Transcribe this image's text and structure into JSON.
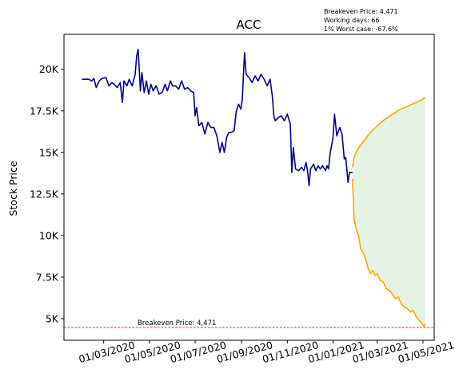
{
  "chart_data": {
    "type": "line",
    "title": "ACC",
    "xlabel": "",
    "ylabel": "Stock Price",
    "info_lines": [
      "Breakeven Price: 4,471",
      "Working days: 66",
      "1% Worst case: -67.6%"
    ],
    "x_ticks": [
      "01/03/2020",
      "01/05/2020",
      "01/07/2020",
      "01/09/2020",
      "01/11/2020",
      "01/01/2021",
      "01/03/2021",
      "01/05/2021"
    ],
    "y_ticks": [
      "5K",
      "7.5K",
      "10K",
      "12.5K",
      "15K",
      "17.5K",
      "20K"
    ],
    "y_tick_values": [
      5000,
      7500,
      10000,
      12500,
      15000,
      17500,
      20000
    ],
    "ylim": [
      3700,
      22100
    ],
    "xlim": [
      "2020-01-08",
      "2021-05-16"
    ],
    "grid": false,
    "breakeven": {
      "value": 4471,
      "label": "Breakeven Price: 4,471",
      "color": "#ff0000"
    },
    "series": [
      {
        "color": "#00008b",
        "points": [
          [
            "2020-02-01",
            19400
          ],
          [
            "2020-02-10",
            19400
          ],
          [
            "2020-02-14",
            19300
          ],
          [
            "2020-02-17",
            19450
          ],
          [
            "2020-02-20",
            18900
          ],
          [
            "2020-02-24",
            19300
          ],
          [
            "2020-02-28",
            19450
          ],
          [
            "2020-03-04",
            19500
          ],
          [
            "2020-03-08",
            19000
          ],
          [
            "2020-03-12",
            19200
          ],
          [
            "2020-03-15",
            19100
          ],
          [
            "2020-03-19",
            18900
          ],
          [
            "2020-03-23",
            19200
          ],
          [
            "2020-03-26",
            18000
          ],
          [
            "2020-03-28",
            19300
          ],
          [
            "2020-04-01",
            19000
          ],
          [
            "2020-04-04",
            19400
          ],
          [
            "2020-04-08",
            19000
          ],
          [
            "2020-04-12",
            19700
          ],
          [
            "2020-04-14",
            20800
          ],
          [
            "2020-04-16",
            21200
          ],
          [
            "2020-04-19",
            18700
          ],
          [
            "2020-04-21",
            19800
          ],
          [
            "2020-04-24",
            18600
          ],
          [
            "2020-04-27",
            19300
          ],
          [
            "2020-04-30",
            18500
          ],
          [
            "2020-05-03",
            19100
          ],
          [
            "2020-05-06",
            18700
          ],
          [
            "2020-05-10",
            19000
          ],
          [
            "2020-05-14",
            18500
          ],
          [
            "2020-05-18",
            18600
          ],
          [
            "2020-05-22",
            19100
          ],
          [
            "2020-05-25",
            18700
          ],
          [
            "2020-05-29",
            19300
          ],
          [
            "2020-06-01",
            19000
          ],
          [
            "2020-06-05",
            19000
          ],
          [
            "2020-06-09",
            18800
          ],
          [
            "2020-06-13",
            19300
          ],
          [
            "2020-06-17",
            18800
          ],
          [
            "2020-06-21",
            18900
          ],
          [
            "2020-06-25",
            18700
          ],
          [
            "2020-06-29",
            18600
          ],
          [
            "2020-07-01",
            17200
          ],
          [
            "2020-07-03",
            17700
          ],
          [
            "2020-07-06",
            16600
          ],
          [
            "2020-07-10",
            16800
          ],
          [
            "2020-07-14",
            16100
          ],
          [
            "2020-07-18",
            16800
          ],
          [
            "2020-07-22",
            16500
          ],
          [
            "2020-07-26",
            16500
          ],
          [
            "2020-07-30",
            16000
          ],
          [
            "2020-08-03",
            15000
          ],
          [
            "2020-08-06",
            15600
          ],
          [
            "2020-08-09",
            15000
          ],
          [
            "2020-08-12",
            15900
          ],
          [
            "2020-08-15",
            16200
          ],
          [
            "2020-08-18",
            16200
          ],
          [
            "2020-08-22",
            16300
          ],
          [
            "2020-08-25",
            17500
          ],
          [
            "2020-08-28",
            17900
          ],
          [
            "2020-08-31",
            17600
          ],
          [
            "2020-09-02",
            18200
          ],
          [
            "2020-09-04",
            20200
          ],
          [
            "2020-09-05",
            21000
          ],
          [
            "2020-09-07",
            19700
          ],
          [
            "2020-09-11",
            19500
          ],
          [
            "2020-09-15",
            19200
          ],
          [
            "2020-09-19",
            19600
          ],
          [
            "2020-09-23",
            19300
          ],
          [
            "2020-09-27",
            19700
          ],
          [
            "2020-10-01",
            19400
          ],
          [
            "2020-10-05",
            19000
          ],
          [
            "2020-10-09",
            19400
          ],
          [
            "2020-10-12",
            18400
          ],
          [
            "2020-10-14",
            17200
          ],
          [
            "2020-10-16",
            16900
          ],
          [
            "2020-10-20",
            17100
          ],
          [
            "2020-10-24",
            17200
          ],
          [
            "2020-10-28",
            16900
          ],
          [
            "2020-11-01",
            17300
          ],
          [
            "2020-11-05",
            16700
          ],
          [
            "2020-11-07",
            13800
          ],
          [
            "2020-11-09",
            15300
          ],
          [
            "2020-11-12",
            14000
          ],
          [
            "2020-11-16",
            13900
          ],
          [
            "2020-11-20",
            14100
          ],
          [
            "2020-11-23",
            13900
          ],
          [
            "2020-11-26",
            14400
          ],
          [
            "2020-11-28",
            13900
          ],
          [
            "2020-11-30",
            13000
          ],
          [
            "2020-12-02",
            14000
          ],
          [
            "2020-12-06",
            14300
          ],
          [
            "2020-12-09",
            13900
          ],
          [
            "2020-12-12",
            14200
          ],
          [
            "2020-12-15",
            14000
          ],
          [
            "2020-12-18",
            14200
          ],
          [
            "2020-12-22",
            13900
          ],
          [
            "2020-12-24",
            14200
          ],
          [
            "2020-12-26",
            14000
          ],
          [
            "2020-12-28",
            14900
          ],
          [
            "2021-01-01",
            15900
          ],
          [
            "2021-01-03",
            17300
          ],
          [
            "2021-01-06",
            16000
          ],
          [
            "2021-01-10",
            16500
          ],
          [
            "2021-01-13",
            16100
          ],
          [
            "2021-01-16",
            14600
          ],
          [
            "2021-01-18",
            14700
          ],
          [
            "2021-01-21",
            13200
          ],
          [
            "2021-01-23",
            13800
          ],
          [
            "2021-01-27",
            13800
          ]
        ]
      },
      {
        "color": "#ffa500",
        "points": [
          [
            "2021-01-27",
            14100
          ],
          [
            "2021-01-29",
            14700
          ],
          [
            "2021-02-03",
            15200
          ],
          [
            "2021-02-08",
            15500
          ],
          [
            "2021-02-13",
            15800
          ],
          [
            "2021-02-18",
            16100
          ],
          [
            "2021-02-23",
            16350
          ],
          [
            "2021-02-28",
            16550
          ],
          [
            "2021-03-05",
            16750
          ],
          [
            "2021-03-10",
            16950
          ],
          [
            "2021-03-15",
            17100
          ],
          [
            "2021-03-20",
            17250
          ],
          [
            "2021-03-25",
            17400
          ],
          [
            "2021-03-30",
            17550
          ],
          [
            "2021-04-04",
            17650
          ],
          [
            "2021-04-09",
            17750
          ],
          [
            "2021-04-14",
            17850
          ],
          [
            "2021-04-19",
            17950
          ],
          [
            "2021-04-24",
            18050
          ],
          [
            "2021-04-29",
            18150
          ],
          [
            "2021-05-04",
            18300
          ]
        ]
      },
      {
        "color": "#ffa500",
        "points": [
          [
            "2021-01-27",
            13400
          ],
          [
            "2021-01-29",
            11000
          ],
          [
            "2021-02-01",
            10400
          ],
          [
            "2021-02-04",
            10000
          ],
          [
            "2021-02-07",
            9200
          ],
          [
            "2021-02-11",
            8900
          ],
          [
            "2021-02-14",
            8500
          ],
          [
            "2021-02-17",
            8000
          ],
          [
            "2021-02-20",
            7700
          ],
          [
            "2021-02-23",
            7900
          ],
          [
            "2021-02-26",
            7600
          ],
          [
            "2021-03-01",
            7700
          ],
          [
            "2021-03-05",
            7300
          ],
          [
            "2021-03-09",
            7200
          ],
          [
            "2021-03-13",
            6800
          ],
          [
            "2021-03-17",
            6700
          ],
          [
            "2021-03-21",
            6500
          ],
          [
            "2021-03-25",
            6200
          ],
          [
            "2021-03-29",
            6300
          ],
          [
            "2021-04-02",
            5900
          ],
          [
            "2021-04-06",
            5700
          ],
          [
            "2021-04-10",
            5600
          ],
          [
            "2021-04-14",
            5400
          ],
          [
            "2021-04-18",
            5500
          ],
          [
            "2021-04-22",
            5100
          ],
          [
            "2021-04-26",
            4900
          ],
          [
            "2021-04-30",
            4700
          ],
          [
            "2021-05-02",
            4500
          ],
          [
            "2021-05-04",
            4700
          ]
        ]
      }
    ],
    "band": {
      "color": "#2ca02c",
      "opacity": 0.12,
      "between_series": [
        1,
        2
      ]
    }
  }
}
